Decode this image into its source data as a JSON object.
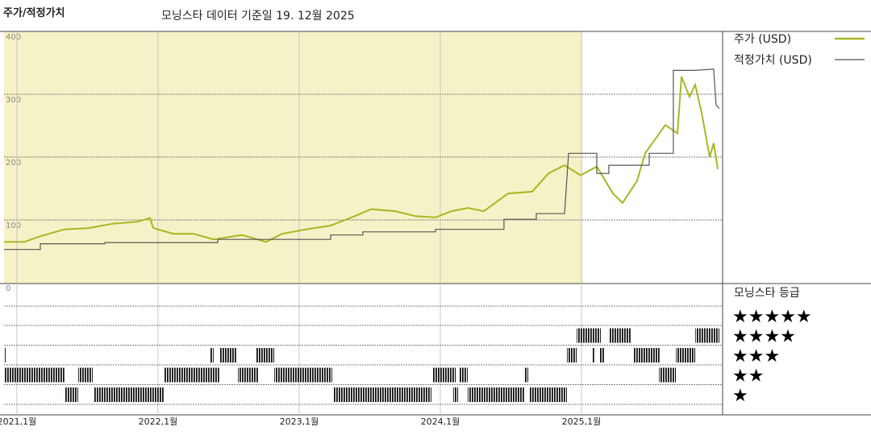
{
  "chart_data": {
    "type": "line",
    "title": "주가/적정가치",
    "subtitle": "모닝스타 데이터 기준일 19. 12월 2025",
    "xlim": [
      2020.909,
      2025.983
    ],
    "ylim": [
      0,
      400
    ],
    "yticks": [
      0,
      100,
      200,
      300,
      400
    ],
    "xticks": [
      {
        "value": 2021,
        "label": "2021,1월"
      },
      {
        "value": 2022,
        "label": "2022,1월"
      },
      {
        "value": 2023,
        "label": "2023,1월"
      },
      {
        "value": 2024,
        "label": "2024,1월"
      },
      {
        "value": 2025,
        "label": "2025,1월"
      }
    ],
    "grid": true,
    "series": [
      {
        "name": "주가 (USD)",
        "color": "#a9b622",
        "x": [
          2020.909,
          2021.051,
          2021.166,
          2021.337,
          2021.509,
          2021.68,
          2021.851,
          2021.943,
          2021.966,
          2022.109,
          2022.251,
          2022.394,
          2022.594,
          2022.766,
          2022.88,
          2023.051,
          2023.223,
          2023.394,
          2023.509,
          2023.68,
          2023.823,
          2023.966,
          2024.08,
          2024.194,
          2024.309,
          2024.48,
          2024.651,
          2024.766,
          2024.88,
          2024.994,
          2025.109,
          2025.223,
          2025.291,
          2025.394,
          2025.451,
          2025.594,
          2025.68,
          2025.709,
          2025.766,
          2025.806,
          2025.851,
          2025.909,
          2025.937,
          2025.966
        ],
        "values": [
          65,
          65,
          74,
          85,
          87,
          94,
          97,
          103,
          87,
          78,
          78,
          69,
          76,
          65,
          78,
          85,
          91,
          106,
          117,
          114,
          106,
          104,
          114,
          119,
          114,
          142,
          145,
          174,
          187,
          171,
          185,
          142,
          127,
          162,
          206,
          251,
          238,
          328,
          296,
          315,
          271,
          200,
          222,
          181
        ]
      },
      {
        "name": "적정가치 (USD)",
        "color": "#555555",
        "x": [
          2020.909,
          2021.166,
          2021.166,
          2021.623,
          2021.623,
          2022.423,
          2022.423,
          2023.223,
          2023.223,
          2023.451,
          2023.451,
          2023.966,
          2023.966,
          2024.451,
          2024.451,
          2024.68,
          2024.68,
          2024.88,
          2024.909,
          2025.109,
          2025.109,
          2025.194,
          2025.194,
          2025.48,
          2025.48,
          2025.651,
          2025.651,
          2025.806,
          2025.937,
          2025.954,
          2025.977
        ],
        "values": [
          53,
          53,
          62,
          62,
          64,
          64,
          69,
          69,
          76,
          76,
          81,
          81,
          85,
          85,
          101,
          101,
          110,
          110,
          206,
          206,
          174,
          174,
          187,
          187,
          206,
          206,
          338,
          338,
          340,
          283,
          277
        ]
      }
    ],
    "rating": {
      "title": "모닝스타 등급",
      "levels": [
        {
          "value": 5,
          "label": "★★★★★"
        },
        {
          "value": 4,
          "label": "★★★★"
        },
        {
          "value": 3,
          "label": "★★★"
        },
        {
          "value": 2,
          "label": "★★"
        },
        {
          "value": 1,
          "label": "★"
        }
      ],
      "periods": [
        {
          "start": 2020.909,
          "end": 2020.92,
          "stars": 3
        },
        {
          "start": 2020.909,
          "end": 2021.337,
          "stars": 2
        },
        {
          "start": 2021.337,
          "end": 2021.434,
          "stars": 1
        },
        {
          "start": 2021.434,
          "end": 2021.537,
          "stars": 2
        },
        {
          "start": 2021.549,
          "end": 2022.04,
          "stars": 1
        },
        {
          "start": 2022.04,
          "end": 2022.434,
          "stars": 2
        },
        {
          "start": 2022.366,
          "end": 2022.394,
          "stars": 3
        },
        {
          "start": 2022.434,
          "end": 2022.554,
          "stars": 3
        },
        {
          "start": 2022.566,
          "end": 2022.709,
          "stars": 2
        },
        {
          "start": 2022.697,
          "end": 2022.823,
          "stars": 3
        },
        {
          "start": 2022.823,
          "end": 2023.234,
          "stars": 2
        },
        {
          "start": 2023.24,
          "end": 2023.937,
          "stars": 1
        },
        {
          "start": 2023.943,
          "end": 2024.109,
          "stars": 2
        },
        {
          "start": 2024.091,
          "end": 2024.126,
          "stars": 1
        },
        {
          "start": 2024.137,
          "end": 2024.194,
          "stars": 2
        },
        {
          "start": 2024.194,
          "end": 2024.594,
          "stars": 1
        },
        {
          "start": 2024.594,
          "end": 2024.623,
          "stars": 2
        },
        {
          "start": 2024.629,
          "end": 2024.897,
          "stars": 1
        },
        {
          "start": 2024.897,
          "end": 2024.966,
          "stars": 3
        },
        {
          "start": 2024.966,
          "end": 2025.137,
          "stars": 4
        },
        {
          "start": 2025.08,
          "end": 2025.091,
          "stars": 3
        },
        {
          "start": 2025.131,
          "end": 2025.166,
          "stars": 3
        },
        {
          "start": 2025.194,
          "end": 2025.354,
          "stars": 4
        },
        {
          "start": 2025.371,
          "end": 2025.554,
          "stars": 3
        },
        {
          "start": 2025.549,
          "end": 2025.669,
          "stars": 2
        },
        {
          "start": 2025.669,
          "end": 2025.806,
          "stars": 3
        },
        {
          "start": 2025.806,
          "end": 2025.977,
          "stars": 4
        }
      ]
    }
  }
}
